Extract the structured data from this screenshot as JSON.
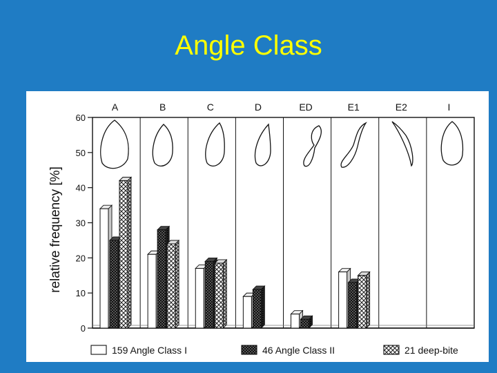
{
  "slide": {
    "title": "Angle Class"
  },
  "chart_data": {
    "type": "bar",
    "title": "",
    "xlabel": "",
    "ylabel": "relative frequency [%]",
    "ylim": [
      0,
      60
    ],
    "yticks": [
      0,
      10,
      20,
      30,
      40,
      50,
      60
    ],
    "categories": [
      "A",
      "B",
      "C",
      "D",
      "ED",
      "E1",
      "E2",
      "I"
    ],
    "series": [
      {
        "name": "159 Angle Class I",
        "pattern": "white",
        "values": [
          34,
          21,
          17,
          9,
          4,
          16,
          0,
          0
        ]
      },
      {
        "name": "46 Angle Class II",
        "pattern": "dark-checker",
        "values": [
          25,
          28,
          19,
          11,
          2.5,
          13,
          0,
          0
        ]
      },
      {
        "name": "21 deep-bite",
        "pattern": "crosshatch",
        "values": [
          42,
          24,
          18.5,
          0,
          0,
          15,
          0,
          0
        ]
      }
    ],
    "legend": "bottom",
    "grid": false,
    "colors": {
      "background": "#1f7cc4",
      "title": "#ffff00",
      "panel": "#ffffff",
      "ink": "#111111"
    }
  }
}
